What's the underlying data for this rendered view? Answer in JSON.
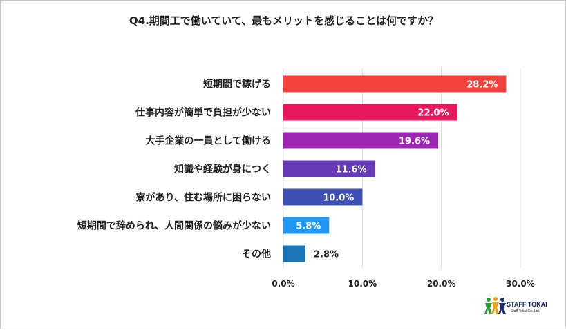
{
  "chart_data": {
    "type": "bar",
    "orientation": "horizontal",
    "title": "Q4.期間工で働いていて、最もメリットを感じることは何ですか？",
    "categories": [
      "短期間で稼げる",
      "仕事内容が簡単で負担が少ない",
      "大手企業の一員として働ける",
      "知識や経験が身につく",
      "寮があり、住む場所に困らない",
      "短期間で辞められ、人間関係の悩みが少ない",
      "その他"
    ],
    "values": [
      28.2,
      22.0,
      19.6,
      11.6,
      10.0,
      5.8,
      2.8
    ],
    "value_labels": [
      "28.2%",
      "22.0%",
      "19.6%",
      "11.6%",
      "10.0%",
      "5.8%",
      "2.8%"
    ],
    "colors": [
      "#f4433c",
      "#e8185e",
      "#9c27b0",
      "#673ab7",
      "#3f51b5",
      "#2196f3",
      "#1976b8"
    ],
    "xlim": [
      0,
      30
    ],
    "xticks": [
      0,
      10,
      20,
      30
    ],
    "xtick_labels": [
      "0.0%",
      "10.0%",
      "20.0%",
      "30.0%"
    ],
    "grid": "vertical",
    "legend": "none"
  },
  "logo": {
    "name": "STAFF TOKAI",
    "sub": "Staff Tokai Co.,Ltd."
  }
}
